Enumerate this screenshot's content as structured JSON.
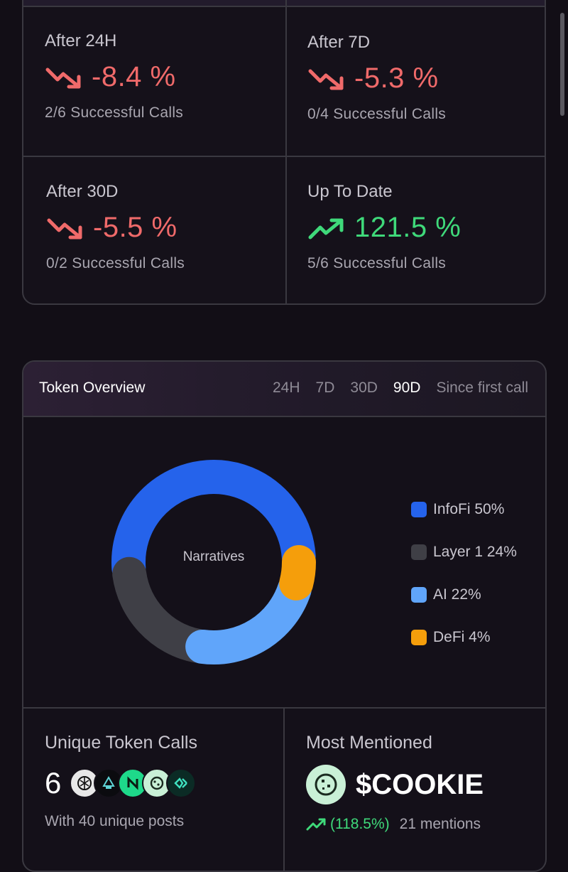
{
  "performance": {
    "cells": [
      {
        "label": "After 24H",
        "value": "-8.4 %",
        "trend": "down",
        "sub": "2/6 Successful Calls"
      },
      {
        "label": "After 7D",
        "value": "-5.3 %",
        "trend": "down",
        "sub": "0/4 Successful Calls"
      },
      {
        "label": "After 30D",
        "value": "-5.5 %",
        "trend": "down",
        "sub": "0/2 Successful Calls"
      },
      {
        "label": "Up To Date",
        "value": "121.5 %",
        "trend": "up",
        "sub": "5/6 Successful Calls"
      }
    ]
  },
  "token_overview": {
    "title": "Token Overview",
    "tabs": [
      "24H",
      "7D",
      "30D",
      "90D",
      "Since first call"
    ],
    "active_tab": "90D",
    "donut_center_label": "Narratives",
    "legend": [
      {
        "label": "InfoFi 50%",
        "color": "#2563eb"
      },
      {
        "label": "Layer 1 24%",
        "color": "#3f3f46"
      },
      {
        "label": "AI 22%",
        "color": "#60a5fa"
      },
      {
        "label": "DeFi 4%",
        "color": "#f59e0b"
      }
    ]
  },
  "chart_data": {
    "type": "pie",
    "title": "Narratives",
    "categories": [
      "InfoFi",
      "Layer 1",
      "AI",
      "DeFi"
    ],
    "values": [
      50,
      24,
      22,
      4
    ],
    "colors": [
      "#2563eb",
      "#3f3f46",
      "#60a5fa",
      "#f59e0b"
    ],
    "legend_position": "right"
  },
  "unique_token_calls": {
    "label": "Unique Token Calls",
    "count": "6",
    "avatars": [
      "token-avatar-1",
      "token-avatar-2",
      "token-avatar-3",
      "token-avatar-4",
      "token-avatar-5"
    ],
    "sub": "With 40 unique posts"
  },
  "most_mentioned": {
    "label": "Most Mentioned",
    "token": "$COOKIE",
    "change": "(118.5%)",
    "mentions": "21 mentions"
  }
}
